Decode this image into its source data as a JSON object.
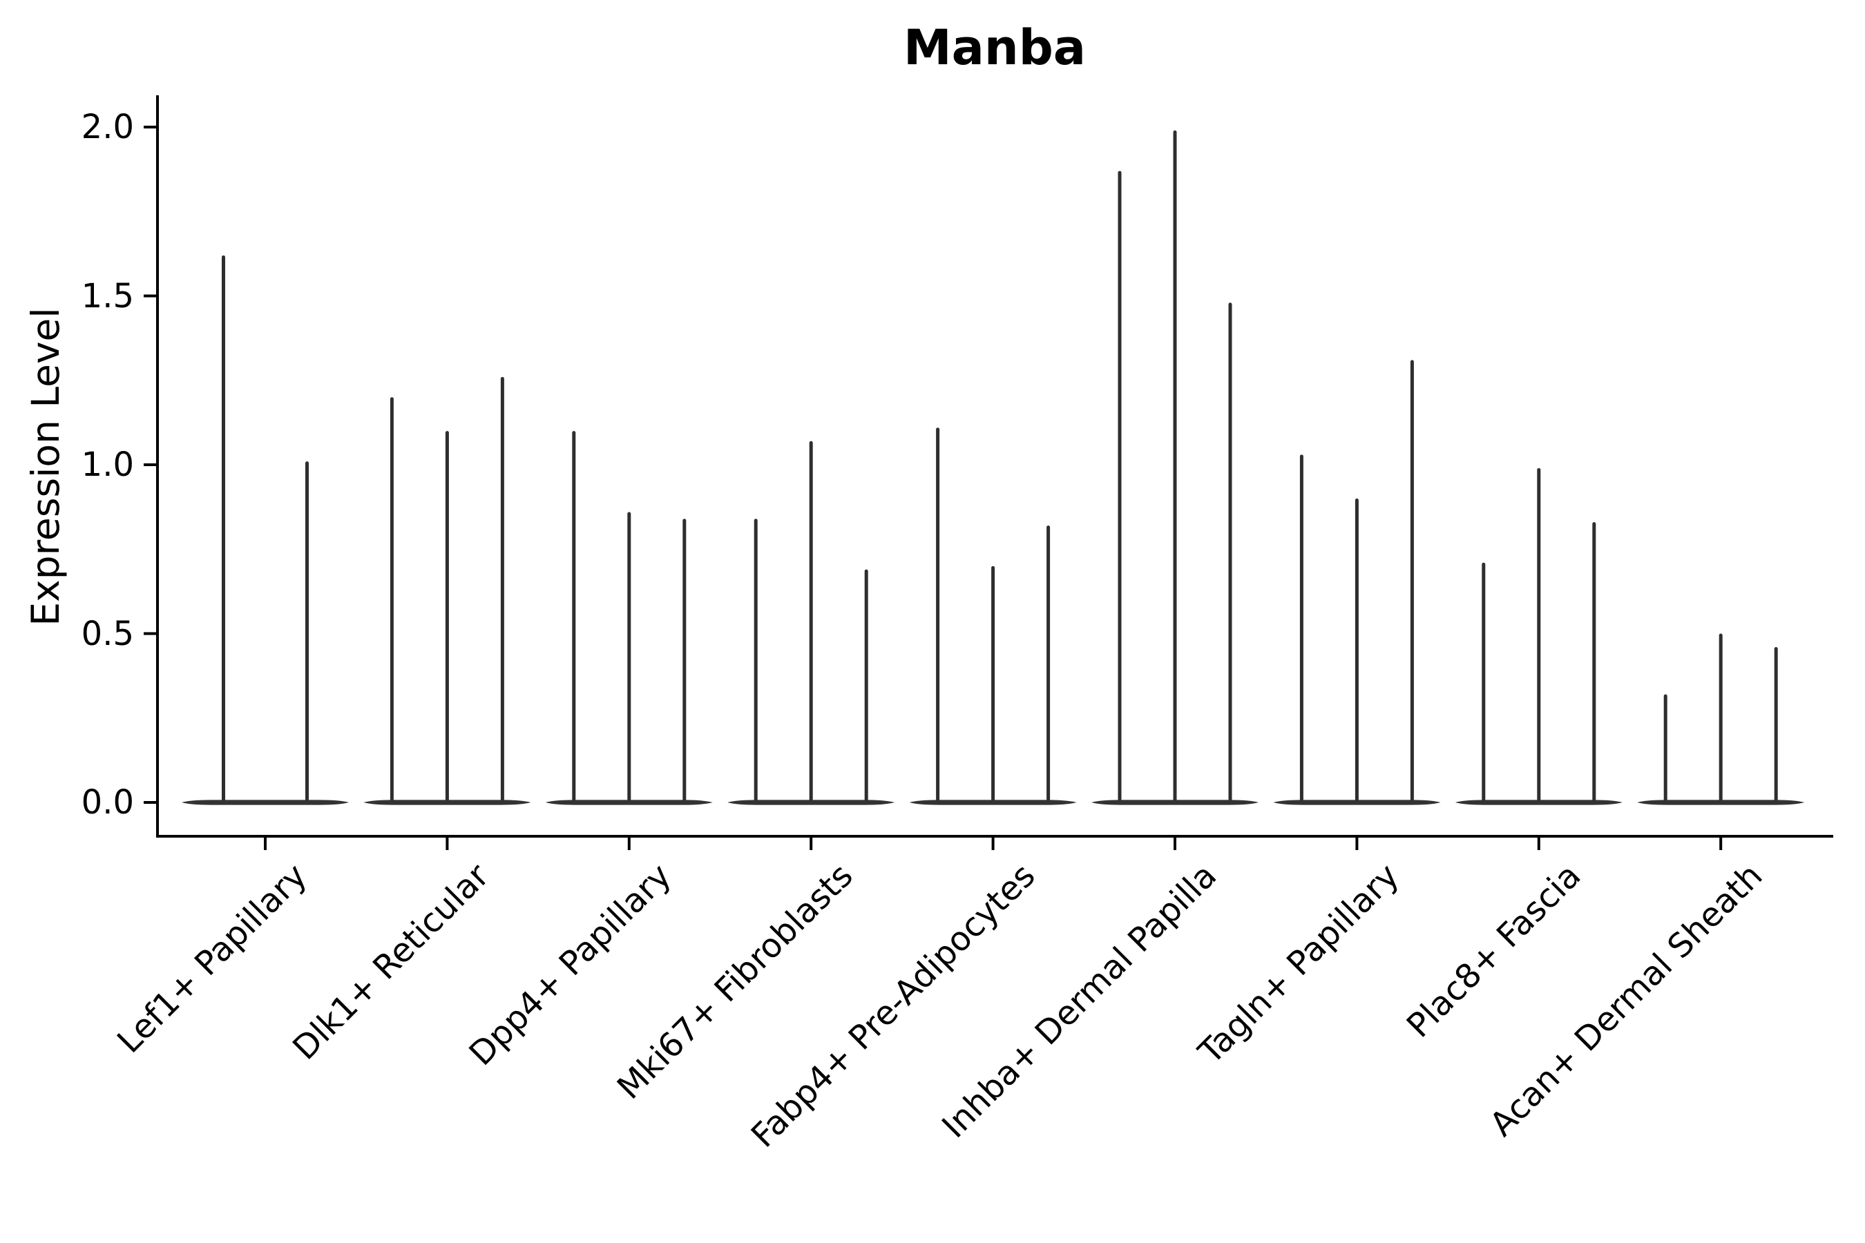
{
  "chart_data": {
    "type": "violin",
    "title": "Manba",
    "ylabel": "Expression Level",
    "xlabel": "",
    "ylim": [
      0,
      2.05
    ],
    "yticks": [
      0.0,
      0.5,
      1.0,
      1.5,
      2.0
    ],
    "ytick_labels": [
      "0.0",
      "0.5",
      "1.0",
      "1.5",
      "2.0"
    ],
    "grid": false,
    "legend": false,
    "style_note": "Seurat-style VlnPlot: expression mass concentrated at 0 (flat dark body along baseline) with thin vertical spikes rising to each violin's maximum density tip",
    "groups": [
      {
        "category": "Lef1+ Papillary",
        "violin_peaks": [
          1.62,
          1.01
        ]
      },
      {
        "category": "Dlk1+ Reticular",
        "violin_peaks": [
          1.2,
          1.1,
          1.26
        ]
      },
      {
        "category": "Dpp4+ Papillary",
        "violin_peaks": [
          1.1,
          0.86,
          0.84
        ]
      },
      {
        "category": "Mki67+ Fibroblasts",
        "violin_peaks": [
          0.84,
          1.07,
          0.69
        ]
      },
      {
        "category": "Fabp4+ Pre-Adipocytes",
        "violin_peaks": [
          1.11,
          0.7,
          0.82
        ]
      },
      {
        "category": "Inhba+ Dermal Papilla",
        "violin_peaks": [
          1.87,
          1.99,
          1.48
        ]
      },
      {
        "category": "Tagln+ Papillary",
        "violin_peaks": [
          1.03,
          0.9,
          1.31
        ]
      },
      {
        "category": "Plac8+ Fascia",
        "violin_peaks": [
          0.71,
          0.99,
          0.83
        ]
      },
      {
        "category": "Acan+ Dermal Sheath",
        "violin_peaks": [
          0.32,
          0.5,
          0.46
        ]
      }
    ],
    "colors": {
      "spike": "#2e2e2e",
      "zero_body": "#333333",
      "axis": "#000000",
      "text": "#000000",
      "background": "#ffffff"
    }
  }
}
